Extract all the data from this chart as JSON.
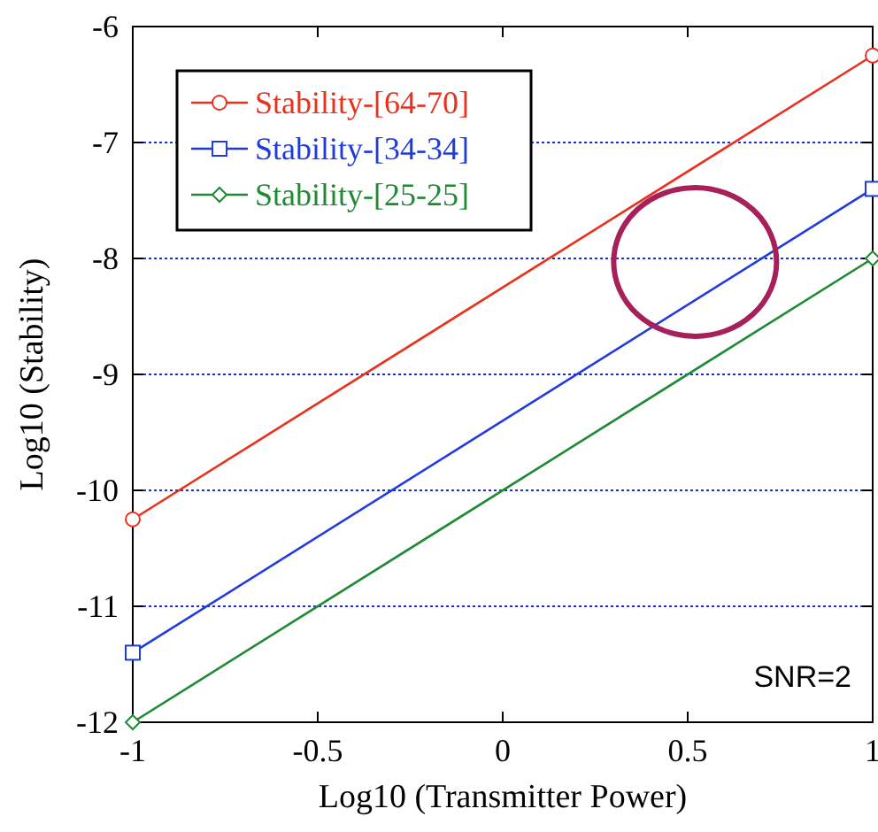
{
  "chart_data": {
    "type": "line",
    "xlabel": "Log10 (Transmitter Power)",
    "ylabel": "Log10 (Stability)",
    "x": [
      -1,
      1
    ],
    "series": [
      {
        "name": "Stability-[64-70]",
        "color": "#e8321e",
        "values": [
          -10.25,
          -6.25
        ],
        "marker": "circle"
      },
      {
        "name": "Stability-[34-34]",
        "color": "#1f3be0",
        "values": [
          -11.4,
          -7.4
        ],
        "marker": "square"
      },
      {
        "name": "Stability-[25-25]",
        "color": "#1e8a32",
        "values": [
          -12,
          -8
        ],
        "marker": "diamond"
      }
    ],
    "xlim": [
      -1,
      1
    ],
    "xticks": [
      -1,
      -0.5,
      0,
      0.5,
      1
    ],
    "ylim": [
      -12,
      -6
    ],
    "yticks": [
      -12,
      -11,
      -10,
      -9,
      -8,
      -7,
      -6
    ],
    "grid": "y",
    "legend": "top left",
    "line_style": "solid",
    "annotations": [
      "SNR=2"
    ]
  }
}
